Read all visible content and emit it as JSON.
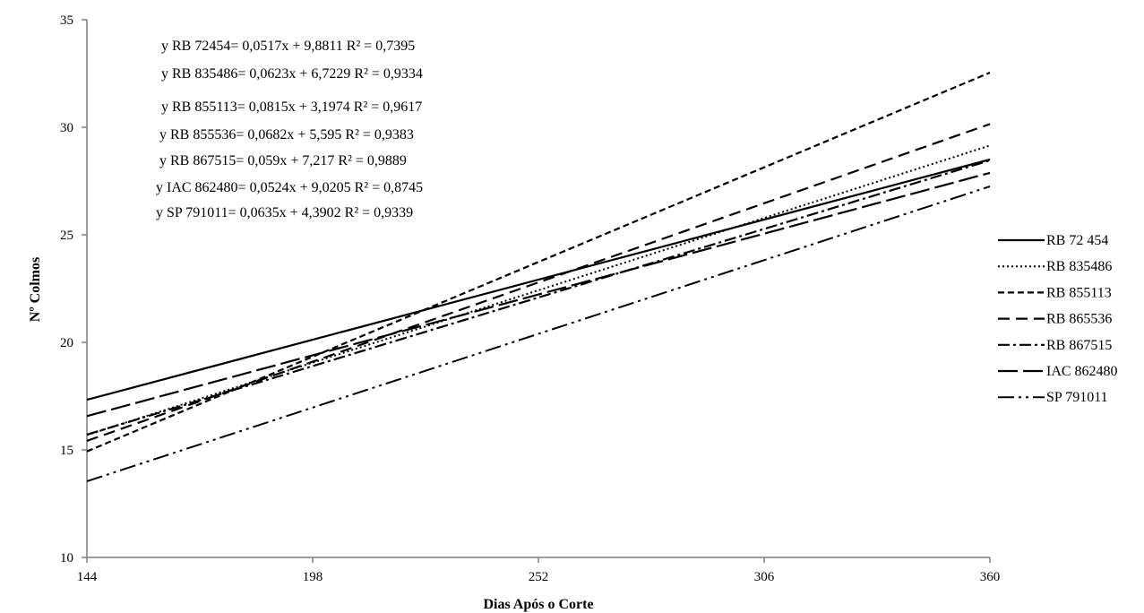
{
  "chart_data": {
    "type": "line",
    "title": "",
    "xlabel": "Dias Após o Corte",
    "ylabel": "Nº Colmos",
    "xlim": [
      144,
      360
    ],
    "ylim": [
      10,
      35
    ],
    "x_ticks": [
      "144",
      "198",
      "252",
      "306",
      "360"
    ],
    "y_ticks": [
      "10",
      "15",
      "20",
      "25",
      "30",
      "35"
    ],
    "x_tick_values": [
      144,
      198,
      252,
      306,
      360
    ],
    "y_tick_values": [
      10,
      15,
      20,
      25,
      30,
      35
    ],
    "grid": false,
    "legend_position": "right",
    "equations": [
      "y  RB 72454= 0,0517x + 9,8811 R² = 0,7395",
      "y  RB 835486= 0,0623x + 6,7229 R² = 0,9334",
      "y  RB 855113= 0,0815x + 3,1974 R² = 0,9617",
      "y  RB 855536= 0,0682x + 5,595 R² = 0,9383",
      "y  RB 867515= 0,059x + 7,217 R² = 0,9889",
      "y  IAC 862480= 0,0524x + 9,0205 R² = 0,8745",
      "y  SP 791011= 0,0635x + 4,3902 R² = 0,9339"
    ],
    "series": [
      {
        "name": "RB 72 454",
        "x": [
          144,
          360
        ],
        "y": [
          17.33,
          28.5
        ],
        "dash": "",
        "width": 2.2
      },
      {
        "name": "RB 835486",
        "x": [
          144,
          360
        ],
        "y": [
          15.69,
          29.15
        ],
        "dash": "2 3",
        "width": 2.0
      },
      {
        "name": "RB 855113",
        "x": [
          144,
          360
        ],
        "y": [
          14.93,
          32.54
        ],
        "dash": "7 4",
        "width": 2.2
      },
      {
        "name": "RB 865536",
        "x": [
          144,
          360
        ],
        "y": [
          15.42,
          30.15
        ],
        "dash": "13 7",
        "width": 2.2
      },
      {
        "name": "RB 867515",
        "x": [
          144,
          360
        ],
        "y": [
          15.71,
          28.46
        ],
        "dash": "13 4 3 4",
        "width": 2.2
      },
      {
        "name": "IAC 862480",
        "x": [
          144,
          360
        ],
        "y": [
          16.57,
          27.88
        ],
        "dash": "22 6",
        "width": 2.2
      },
      {
        "name": "SP 791011",
        "x": [
          144,
          360
        ],
        "y": [
          13.54,
          27.25
        ],
        "dash": "18 5 3 5 3 5",
        "width": 2.0
      }
    ]
  }
}
